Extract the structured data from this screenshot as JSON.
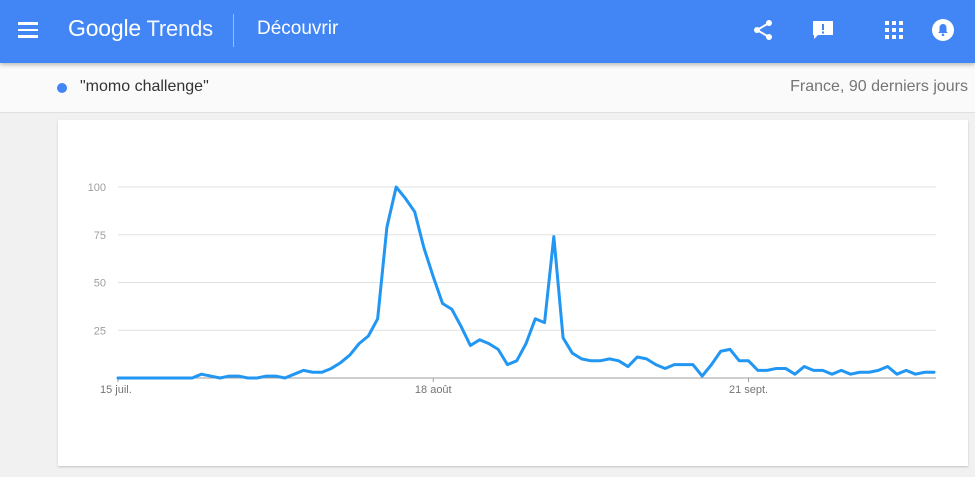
{
  "header": {
    "logo_google": "Google",
    "logo_trends": "Trends",
    "section": "Découvrir",
    "icons": [
      "menu-icon",
      "share-icon",
      "feedback-icon",
      "apps-icon",
      "notifications-icon"
    ],
    "color": "#4285f4"
  },
  "subbar": {
    "term": "\"momo challenge\"",
    "region": "France, 90 derniers jours",
    "term_color": "#4285f4"
  },
  "chart_data": {
    "type": "line",
    "title": "",
    "xlabel": "",
    "ylabel": "",
    "ylim": [
      0,
      100
    ],
    "yticks": [
      25,
      50,
      75,
      100
    ],
    "grid": true,
    "x_tick_labels": [
      {
        "label": "15 juil.",
        "index": 0
      },
      {
        "label": "18 août",
        "index": 34
      },
      {
        "label": "21 sept.",
        "index": 68
      }
    ],
    "series": [
      {
        "color": "#2196f3",
        "values": [
          0,
          0,
          0,
          0,
          0,
          0,
          0,
          0,
          0,
          2,
          1,
          0,
          1,
          1,
          0,
          0,
          1,
          1,
          0,
          2,
          4,
          3,
          3,
          5,
          8,
          12,
          18,
          22,
          31,
          79,
          100,
          94,
          87,
          68,
          53,
          39,
          36,
          27,
          17,
          20,
          18,
          15,
          7,
          9,
          18,
          31,
          29,
          74,
          21,
          13,
          10,
          9,
          9,
          10,
          9,
          6,
          11,
          10,
          7,
          5,
          7,
          7,
          7,
          1,
          7,
          14,
          15,
          9,
          9,
          4,
          4,
          5,
          5,
          2,
          6,
          4,
          4,
          2,
          4,
          2,
          3,
          3,
          4,
          6,
          2,
          4,
          2,
          3,
          3
        ]
      }
    ]
  }
}
